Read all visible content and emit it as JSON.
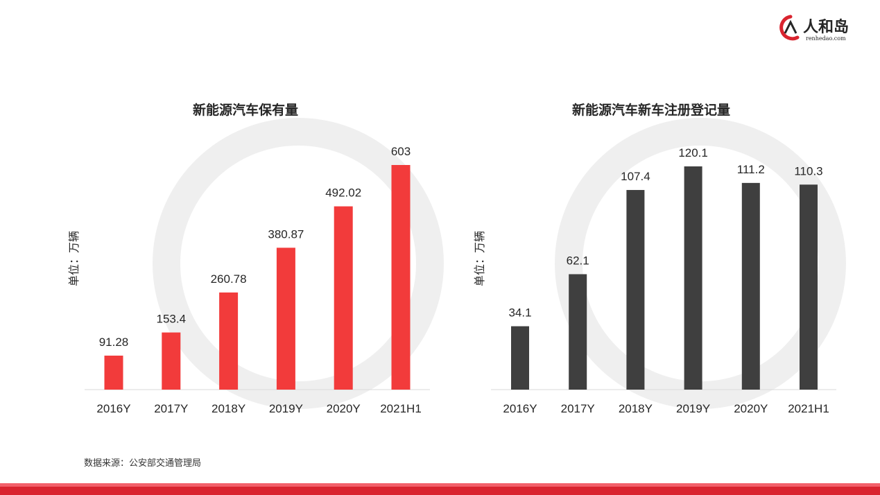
{
  "brand": {
    "logo_text": "人和岛",
    "logo_url_text": "renhedao.com",
    "color": "#d9242f"
  },
  "source_note": "数据来源：公安部交通管理局",
  "chart_data": [
    {
      "type": "bar",
      "title": "新能源汽车保有量",
      "ylabel": "单位：万辆",
      "categories": [
        "2016Y",
        "2017Y",
        "2018Y",
        "2019Y",
        "2020Y",
        "2021H1"
      ],
      "values": [
        91.28,
        153.4,
        260.78,
        380.87,
        492.02,
        603
      ],
      "value_labels": [
        "91.28",
        "153.4",
        "260.78",
        "380.87",
        "492.02",
        "603"
      ],
      "ylim": [
        0,
        603
      ],
      "bar_color": "#f23b3b",
      "grid": false
    },
    {
      "type": "bar",
      "title": "新能源汽车新车注册登记量",
      "ylabel": "单位：万辆",
      "categories": [
        "2016Y",
        "2017Y",
        "2018Y",
        "2019Y",
        "2020Y",
        "2021H1"
      ],
      "values": [
        34.1,
        62.1,
        107.4,
        120.1,
        111.2,
        110.3
      ],
      "value_labels": [
        "34.1",
        "62.1",
        "107.4",
        "120.1",
        "111.2",
        "110.3"
      ],
      "ylim": [
        0,
        120.1
      ],
      "bar_color": "#3f3f3f",
      "grid": false
    }
  ]
}
